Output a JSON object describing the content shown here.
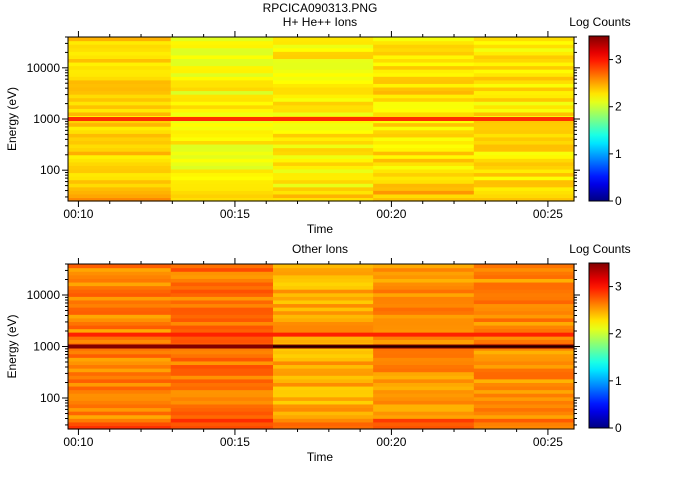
{
  "page": {
    "file_title": "RPCICA090313.PNG"
  },
  "chart_data": [
    {
      "type": "heatmap",
      "title": "H+ He++ Ions",
      "xlabel": "Time",
      "ylabel": "Energy (eV)",
      "y_scale": "log",
      "x_ticks": [
        "00:10",
        "00:15",
        "00:20",
        "00:25"
      ],
      "y_ticks": [
        "100",
        "1000",
        "10000"
      ],
      "xlim": [
        "00:09:40",
        "00:25:50"
      ],
      "ylim": [
        25,
        40000
      ],
      "time_blocks": [
        "00:09:40",
        "00:12:57",
        "00:16:13",
        "00:19:25",
        "00:22:38",
        "00:25:50"
      ],
      "dominant_level": 2.3,
      "bands": [
        {
          "energy_eV": 1000,
          "level": 2.9
        }
      ],
      "colorbar": {
        "label": "Log Counts",
        "ticks": [
          "0",
          "1",
          "2",
          "3"
        ],
        "range": [
          0,
          3.5
        ]
      }
    },
    {
      "type": "heatmap",
      "title": "Other Ions",
      "xlabel": "Time",
      "ylabel": "Energy (eV)",
      "y_scale": "log",
      "x_ticks": [
        "00:10",
        "00:15",
        "00:20",
        "00:25"
      ],
      "y_ticks": [
        "100",
        "1000",
        "10000"
      ],
      "xlim": [
        "00:09:40",
        "00:25:50"
      ],
      "ylim": [
        25,
        40000
      ],
      "time_blocks": [
        "00:09:40",
        "00:12:57",
        "00:16:13",
        "00:19:25",
        "00:22:38",
        "00:25:50"
      ],
      "dominant_level": 2.55,
      "bands": [
        {
          "energy_eV": 1700,
          "level": 2.95
        },
        {
          "energy_eV": 1000,
          "level": 3.5
        }
      ],
      "colorbar": {
        "label": "Log Counts",
        "ticks": [
          "0",
          "1",
          "2",
          "3"
        ],
        "range": [
          0,
          3.5
        ]
      }
    }
  ]
}
